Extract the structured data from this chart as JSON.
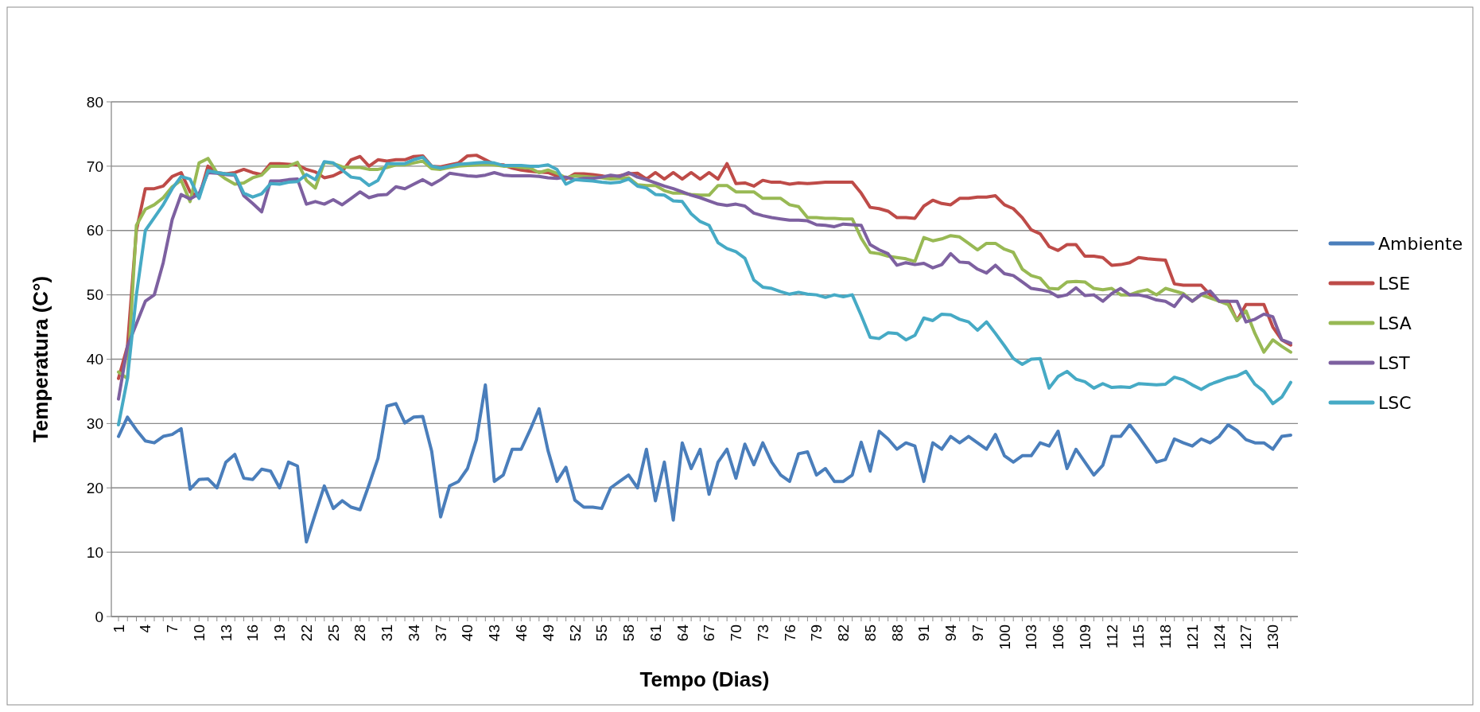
{
  "chart_data": {
    "type": "line",
    "xlabel": "Tempo (Dias)",
    "ylabel": "Temperatura (C°)",
    "categories": [
      "1",
      null,
      null,
      "4",
      null,
      null,
      "7",
      null,
      null,
      "10",
      null,
      null,
      "13",
      null,
      null,
      "16",
      null,
      null,
      "19",
      null,
      null,
      "22",
      null,
      null,
      "25",
      null,
      null,
      "28",
      null,
      null,
      "31",
      null,
      null,
      "34",
      null,
      null,
      "37",
      null,
      null,
      "40",
      null,
      null,
      "43",
      null,
      null,
      "46",
      null,
      null,
      "49",
      null,
      null,
      "52",
      null,
      null,
      "55",
      null,
      null,
      "58",
      null,
      null,
      "61",
      null,
      null,
      "64",
      null,
      null,
      "67",
      null,
      null,
      "70",
      null,
      null,
      "73",
      null,
      null,
      "76",
      null,
      null,
      "79",
      null,
      null,
      "82",
      null,
      null,
      "85",
      null,
      null,
      "88",
      null,
      null,
      "91",
      null,
      null,
      "94",
      null,
      null,
      "97",
      null,
      null,
      "100",
      null,
      null,
      "103",
      null,
      null,
      "106",
      null,
      null,
      "109",
      null,
      null,
      "112",
      null,
      null,
      "115",
      null,
      null,
      "118",
      null,
      null,
      "121",
      null,
      null,
      "124",
      null,
      null,
      "127",
      null,
      null,
      "130",
      null,
      null
    ],
    "ylim": [
      0,
      80
    ],
    "yticks": [
      0,
      10,
      20,
      30,
      40,
      50,
      60,
      70,
      80
    ],
    "grid": "y",
    "legend": "right",
    "series": [
      {
        "name": "Ambiente",
        "color": "#4a7ebb",
        "values": [
          28,
          31,
          29,
          27.3,
          27,
          28,
          28.3,
          29.2,
          19.8,
          21.3,
          21.4,
          20,
          24,
          25.2,
          21.5,
          21.3,
          22.9,
          22.6,
          20,
          24,
          23.4,
          11.6,
          16,
          20.3,
          16.8,
          18,
          17,
          16.6,
          20.5,
          24.6,
          32.7,
          33.1,
          30.1,
          31,
          31.1,
          25.7,
          15.5,
          20.3,
          21,
          23,
          27.5,
          36,
          21,
          22,
          26,
          26,
          29,
          32.3,
          25.8,
          21,
          23.2,
          18.1,
          17,
          17,
          16.8,
          20,
          21,
          22,
          20,
          26,
          18,
          24,
          15,
          27,
          23,
          26,
          19,
          24,
          26,
          21.5,
          26.8,
          23.6,
          27,
          24,
          22,
          21,
          25.3,
          25.6,
          22,
          23,
          21,
          21,
          22,
          27.1,
          22.6,
          28.8,
          27.6,
          26,
          27,
          26.5,
          21,
          27,
          26,
          28,
          27,
          28,
          27,
          26,
          28.3,
          25,
          24,
          25,
          25,
          27,
          26.5,
          28.8,
          23,
          26,
          24,
          22,
          23.5,
          28,
          28,
          29.8,
          28,
          26,
          24,
          24.4,
          27.6,
          27,
          26.5,
          27.6,
          27,
          28,
          29.8,
          28.9,
          27.5,
          27,
          27,
          26,
          28,
          28.2
        ]
      },
      {
        "name": "LSE",
        "color": "#be4b48",
        "values": [
          37,
          42,
          60,
          66.5,
          66.5,
          66.9,
          68.4,
          69,
          66,
          65.2,
          70,
          69,
          68.8,
          69,
          69.5,
          69,
          68.7,
          70.4,
          70.4,
          70.3,
          70.2,
          69.5,
          69.1,
          68.2,
          68.5,
          69.2,
          71,
          71.5,
          70,
          71,
          70.8,
          71,
          71,
          71.5,
          71.6,
          70,
          69.9,
          70.2,
          70.5,
          71.6,
          71.7,
          71,
          70.3,
          70.2,
          69.7,
          69.4,
          69.2,
          69.1,
          69,
          68.5,
          68,
          68.8,
          68.8,
          68.7,
          68.5,
          68.2,
          68.5,
          68.8,
          68.9,
          68,
          69,
          68,
          69,
          68,
          69,
          68,
          69,
          68,
          70.4,
          67.3,
          67.4,
          66.9,
          67.8,
          67.5,
          67.5,
          67.2,
          67.4,
          67.3,
          67.4,
          67.5,
          67.5,
          67.5,
          67.5,
          65.8,
          63.6,
          63.4,
          63,
          62,
          62,
          61.9,
          63.8,
          64.7,
          64.2,
          64,
          65,
          65,
          65.2,
          65.2,
          65.4,
          64,
          63.4,
          62,
          60.1,
          59.5,
          57.5,
          56.9,
          57.8,
          57.8,
          56,
          56,
          55.8,
          54.6,
          54.7,
          55,
          55.8,
          55.6,
          55.5,
          55.4,
          51.7,
          51.5,
          51.5,
          51.5,
          50,
          49,
          49,
          46,
          48.5,
          48.5,
          48.5,
          45,
          43,
          42.2
        ]
      },
      {
        "name": "LSA",
        "color": "#98b954",
        "values": [
          38,
          37,
          60.8,
          63.3,
          64,
          65.1,
          66.8,
          67.8,
          64.5,
          70.5,
          71.2,
          69,
          68,
          67.2,
          67.4,
          68.2,
          68.6,
          70,
          70,
          70,
          70.6,
          67.8,
          66.6,
          70.6,
          70.4,
          69.9,
          69.8,
          69.8,
          69.5,
          69.5,
          69.8,
          70.2,
          70.2,
          70.5,
          70.8,
          69.6,
          69.5,
          69.8,
          70,
          70.1,
          70.2,
          70.3,
          70.2,
          70,
          70,
          69.8,
          69.7,
          69,
          69.4,
          68.9,
          68.2,
          68.5,
          68.4,
          68.3,
          68.2,
          68,
          68.1,
          68.2,
          67.1,
          67,
          67,
          66.2,
          65.8,
          65.8,
          65.6,
          65.5,
          65.5,
          67,
          67,
          66,
          66,
          66,
          65,
          65,
          65,
          64,
          63.7,
          62,
          62,
          61.9,
          61.9,
          61.8,
          61.8,
          58.8,
          56.6,
          56.4,
          56,
          55.8,
          55.6,
          55.2,
          58.9,
          58.4,
          58.7,
          59.2,
          59,
          58,
          57,
          58,
          58,
          57.1,
          56.6,
          54,
          53,
          52.6,
          51,
          50.9,
          52,
          52.1,
          52,
          51,
          50.8,
          51,
          50,
          50,
          50.5,
          50.8,
          50,
          51,
          50.6,
          50.2,
          49,
          50,
          49.5,
          49,
          48.5,
          46,
          47.5,
          44,
          41.1,
          43,
          42,
          41.1
        ]
      },
      {
        "name": "LST",
        "color": "#7d60a0",
        "values": [
          33.8,
          42,
          45.5,
          49,
          50,
          55,
          61.7,
          65.6,
          64.9,
          65.7,
          69,
          68.9,
          68.7,
          68.6,
          65.4,
          64.2,
          62.9,
          67.7,
          67.7,
          67.9,
          68,
          64.1,
          64.5,
          64.1,
          64.8,
          64,
          65,
          66,
          65.1,
          65.5,
          65.6,
          66.8,
          66.5,
          67.2,
          67.9,
          67.1,
          67.9,
          68.9,
          68.7,
          68.5,
          68.4,
          68.6,
          69,
          68.6,
          68.5,
          68.5,
          68.5,
          68.4,
          68.2,
          68.1,
          68.3,
          67.9,
          68.1,
          68.1,
          68.3,
          68.6,
          68.4,
          69,
          68.3,
          67.9,
          67.4,
          66.9,
          66.5,
          66,
          65.5,
          65.1,
          64.6,
          64.1,
          63.9,
          64.1,
          63.8,
          62.7,
          62.3,
          62,
          61.8,
          61.6,
          61.6,
          61.5,
          60.9,
          60.8,
          60.6,
          61,
          60.9,
          60.8,
          57.8,
          57,
          56.4,
          54.6,
          55,
          54.7,
          54.9,
          54.2,
          54.7,
          56.4,
          55.1,
          55,
          54,
          53.4,
          54.6,
          53.3,
          53,
          52,
          51,
          50.8,
          50.5,
          49.7,
          50,
          51.1,
          49.9,
          50,
          49,
          50.2,
          51,
          50,
          50,
          49.7,
          49.2,
          49,
          48.2,
          50,
          49,
          50.1,
          50.6,
          49,
          49,
          49,
          45.8,
          46.2,
          47,
          46.6,
          43,
          42.5
        ]
      },
      {
        "name": "LSC",
        "color": "#46aac5",
        "values": [
          29.8,
          37,
          50,
          60,
          62,
          64,
          66.5,
          68.4,
          68,
          65,
          69.3,
          69,
          68.8,
          68.7,
          65.8,
          65.2,
          65.7,
          67.3,
          67.2,
          67.5,
          67.6,
          68.7,
          67.9,
          70.7,
          70.5,
          69.4,
          68.3,
          68.1,
          67,
          67.8,
          70.4,
          70.4,
          70.4,
          71,
          71.4,
          70,
          69.7,
          70,
          70.3,
          70.4,
          70.5,
          70.6,
          70.5,
          70.1,
          70.1,
          70.1,
          70,
          70,
          70.2,
          69.5,
          67.2,
          67.9,
          67.8,
          67.7,
          67.5,
          67.4,
          67.5,
          68,
          66.9,
          66.6,
          65.6,
          65.5,
          64.6,
          64.5,
          62.6,
          61.4,
          60.8,
          58.1,
          57.2,
          56.7,
          55.7,
          52.3,
          51.2,
          51,
          50.5,
          50.1,
          50.4,
          50.1,
          50,
          49.6,
          50,
          49.7,
          50,
          46.8,
          43.4,
          43.2,
          44.1,
          44,
          43,
          43.7,
          46.4,
          46,
          47,
          46.9,
          46.2,
          45.8,
          44.5,
          45.8,
          44,
          42.1,
          40.1,
          39.2,
          40,
          40.1,
          35.5,
          37.3,
          38.1,
          36.9,
          36.5,
          35.5,
          36.2,
          35.6,
          35.7,
          35.6,
          36.2,
          36.1,
          36,
          36.1,
          37.2,
          36.8,
          36,
          35.3,
          36.1,
          36.6,
          37.1,
          37.4,
          38.1,
          36.1,
          35,
          33.1,
          34.1,
          36.4
        ]
      }
    ]
  }
}
